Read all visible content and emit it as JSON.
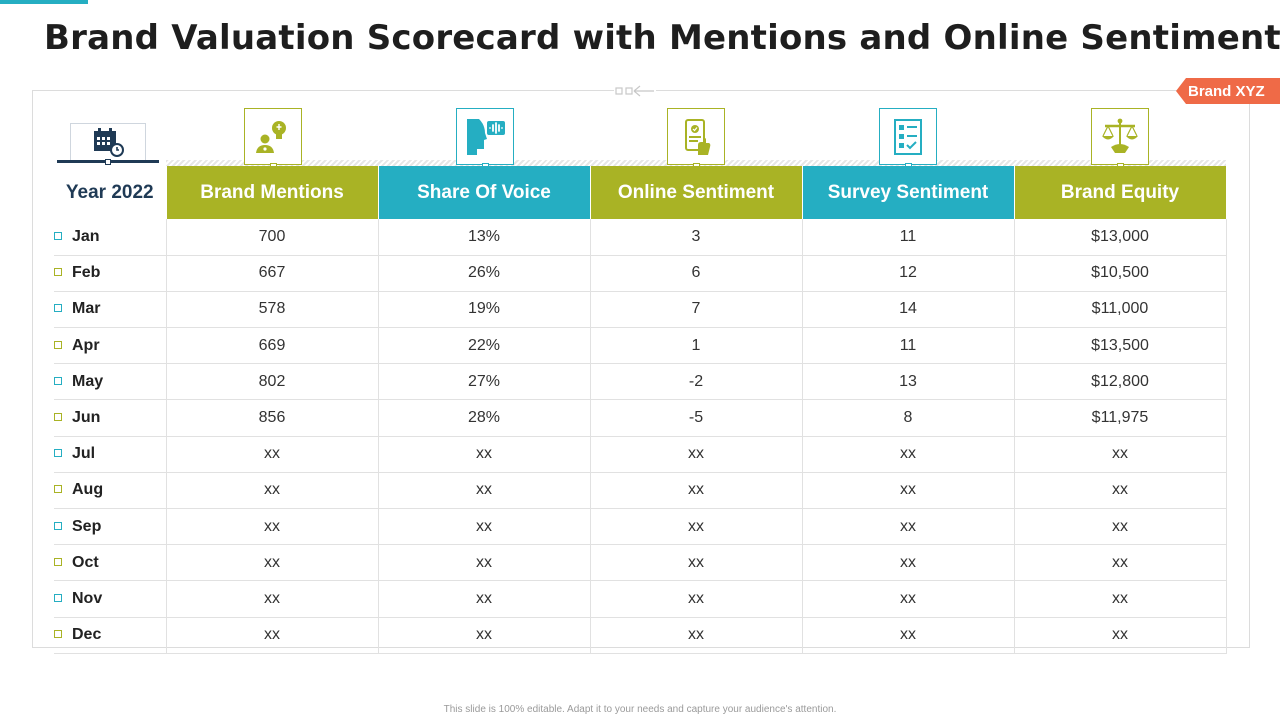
{
  "title": "Brand Valuation Scorecard with Mentions and Online Sentiments",
  "brand_tag": "Brand XYZ",
  "colors": {
    "olive": "#a9b325",
    "teal": "#25aec2",
    "tag": "#ef6a47",
    "navy": "#1f3a55"
  },
  "table": {
    "year_label": "Year 2022",
    "columns": [
      {
        "label": "Brand Mentions",
        "color": "olive",
        "icon": "lightbulb-person-icon"
      },
      {
        "label": "Share Of Voice",
        "color": "teal",
        "icon": "speaking-head-icon"
      },
      {
        "label": "Online Sentiment",
        "color": "olive",
        "icon": "mobile-feedback-icon"
      },
      {
        "label": "Survey Sentiment",
        "color": "teal",
        "icon": "checklist-icon"
      },
      {
        "label": "Brand Equity",
        "color": "olive",
        "icon": "balance-scale-icon"
      }
    ],
    "rows": [
      {
        "month": "Jan",
        "values": [
          "700",
          "13%",
          "3",
          "11",
          "$13,000"
        ]
      },
      {
        "month": "Feb",
        "values": [
          "667",
          "26%",
          "6",
          "12",
          "$10,500"
        ]
      },
      {
        "month": "Mar",
        "values": [
          "578",
          "19%",
          "7",
          "14",
          "$11,000"
        ]
      },
      {
        "month": "Apr",
        "values": [
          "669",
          "22%",
          "1",
          "11",
          "$13,500"
        ]
      },
      {
        "month": "May",
        "values": [
          "802",
          "27%",
          "-2",
          "13",
          "$12,800"
        ]
      },
      {
        "month": "Jun",
        "values": [
          "856",
          "28%",
          "-5",
          "8",
          "$11,975"
        ]
      },
      {
        "month": "Jul",
        "values": [
          "xx",
          "xx",
          "xx",
          "xx",
          "xx"
        ]
      },
      {
        "month": "Aug",
        "values": [
          "xx",
          "xx",
          "xx",
          "xx",
          "xx"
        ]
      },
      {
        "month": "Sep",
        "values": [
          "xx",
          "xx",
          "xx",
          "xx",
          "xx"
        ]
      },
      {
        "month": "Oct",
        "values": [
          "xx",
          "xx",
          "xx",
          "xx",
          "xx"
        ]
      },
      {
        "month": "Nov",
        "values": [
          "xx",
          "xx",
          "xx",
          "xx",
          "xx"
        ]
      },
      {
        "month": "Dec",
        "values": [
          "xx",
          "xx",
          "xx",
          "xx",
          "xx"
        ]
      }
    ]
  },
  "footer": "This slide is 100% editable. Adapt it to your needs and capture your audience's attention."
}
